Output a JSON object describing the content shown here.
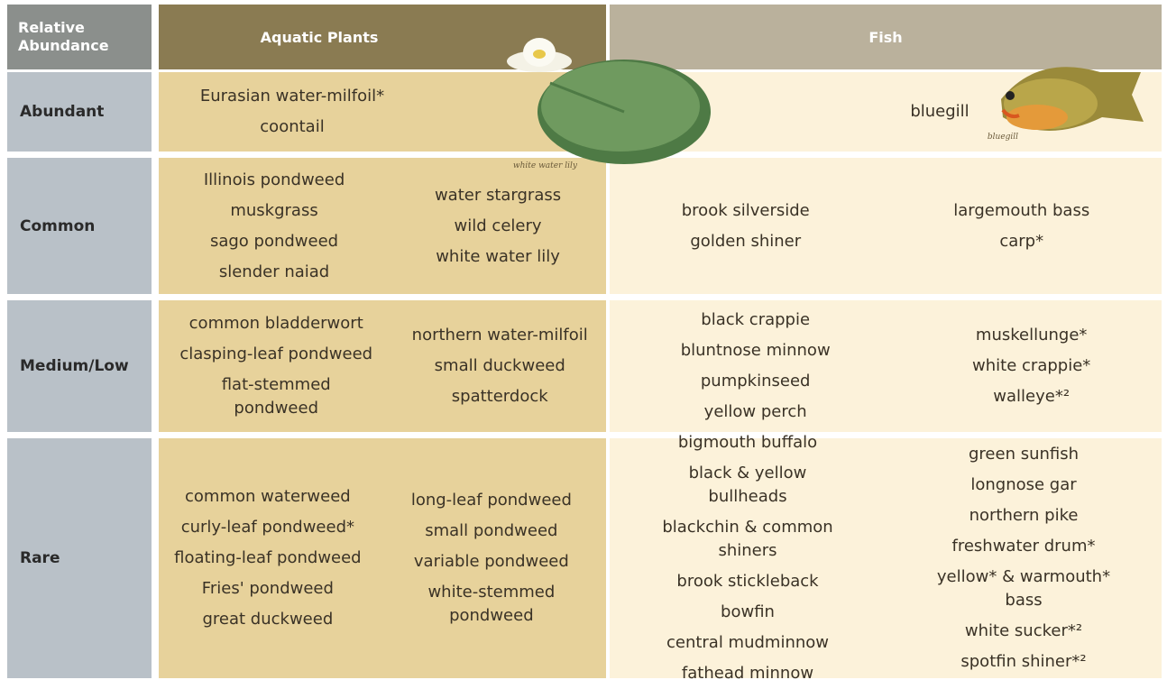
{
  "header": {
    "abundance": "Relative Abundance",
    "plants": "Aquatic Plants",
    "fish": "Fish"
  },
  "rows": [
    {
      "abundance": "Abundant",
      "plants": [
        [
          "Eurasian water-milfoil*",
          "coontail"
        ]
      ],
      "fish": [
        [
          "bluegill"
        ]
      ]
    },
    {
      "abundance": "Common",
      "plants": [
        [
          "Illinois pondweed",
          "muskgrass",
          "sago pondweed",
          "slender naiad"
        ],
        [
          "water stargrass",
          "wild celery",
          "white water lily"
        ]
      ],
      "fish": [
        [
          "brook silverside",
          "golden shiner"
        ],
        [
          "largemouth bass",
          "carp*"
        ]
      ]
    },
    {
      "abundance": "Medium/Low",
      "plants": [
        [
          "common bladderwort",
          "clasping-leaf pondweed",
          "flat-stemmed pondweed"
        ],
        [
          "northern water-milfoil",
          "small duckweed",
          "spatterdock"
        ]
      ],
      "fish": [
        [
          "black crappie",
          "bluntnose minnow",
          "pumpkinseed",
          "yellow perch"
        ],
        [
          "muskellunge*",
          "white crappie*",
          "walleye*²"
        ]
      ]
    },
    {
      "abundance": "Rare",
      "plants": [
        [
          "common waterweed",
          "curly-leaf pondweed*",
          "floating-leaf pondweed",
          "Fries' pondweed",
          "great duckweed"
        ],
        [
          "long-leaf pondweed",
          "small pondweed",
          "variable pondweed",
          "white-stemmed pondweed"
        ]
      ],
      "fish": [
        [
          "bigmouth buffalo",
          "black & yellow bullheads",
          "blackchin & common shiners",
          "brook stickleback",
          "bowfin",
          "central mudminnow",
          "fathead minnow"
        ],
        [
          "green sunfish",
          "longnose gar",
          "northern pike",
          "freshwater drum*",
          "yellow* & warmouth* bass",
          "white sucker*²",
          "spotfin shiner*²"
        ]
      ]
    }
  ],
  "captions": {
    "lily": "white water lily",
    "fish": "bluegill"
  }
}
